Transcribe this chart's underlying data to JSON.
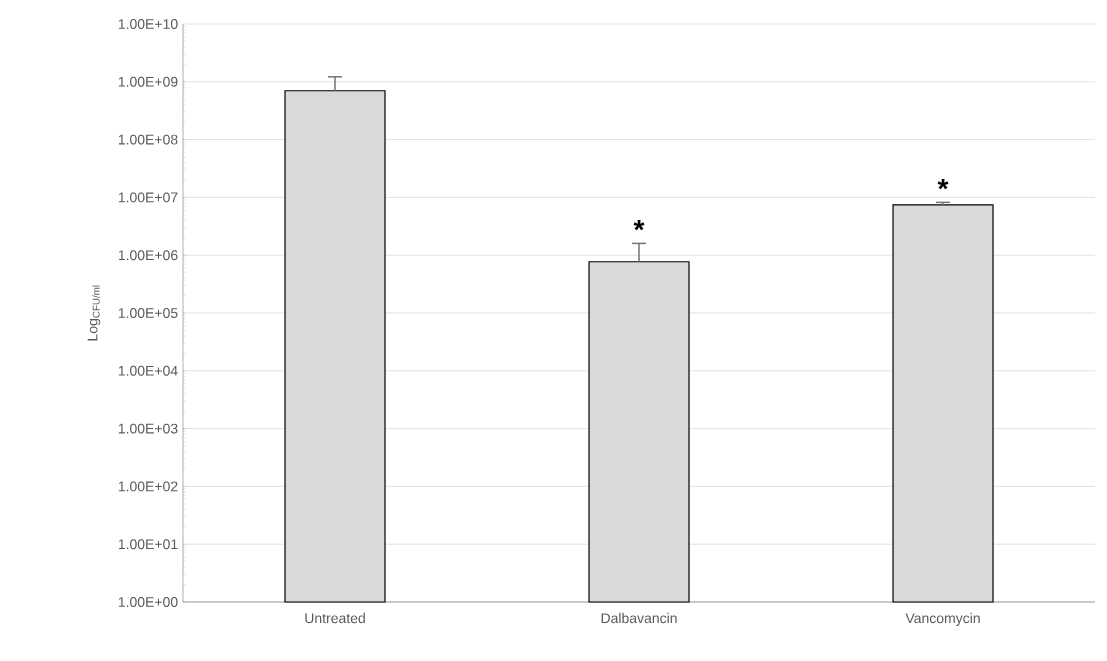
{
  "chart_data": {
    "type": "bar",
    "ylabel": "Log$_{CFU/ml}$",
    "log": true,
    "grid": "y",
    "categories": [
      "Untreated",
      "Dalbavancin",
      "Vancomycin"
    ],
    "values": [
      700000000,
      770000,
      7400000
    ],
    "errors": [
      [
        700000000,
        1220000000
      ],
      [
        770000,
        1600000
      ],
      [
        7400000,
        8200000
      ]
    ],
    "color": "#d9d9d9",
    "ylim": [
      1,
      10000000000
    ],
    "yticks": [
      {
        "value": 1,
        "label": "1.00E+00"
      },
      {
        "value": 10,
        "label": "1.00E+01"
      },
      {
        "value": 100,
        "label": "1.00E+02"
      },
      {
        "value": 1000,
        "label": "1.00E+03"
      },
      {
        "value": 10000,
        "label": "1.00E+04"
      },
      {
        "value": 100000,
        "label": "1.00E+05"
      },
      {
        "value": 1000000,
        "label": "1.00E+06"
      },
      {
        "value": 10000000,
        "label": "1.00E+07"
      },
      {
        "value": 100000000,
        "label": "1.00E+08"
      },
      {
        "value": 1000000000,
        "label": "1.00E+09"
      },
      {
        "value": 10000000000,
        "label": "1.00E+10"
      }
    ],
    "annotations": [
      "*",
      "*"
    ]
  }
}
